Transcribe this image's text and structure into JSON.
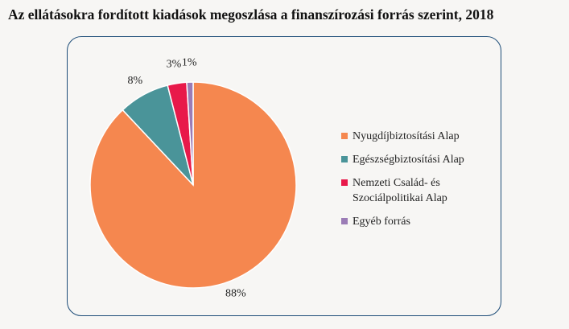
{
  "title": "Az ellátásokra fordított kiadások megoszlása a finanszírozási forrás szerint, 2018",
  "chart_data": {
    "type": "pie",
    "title": "Az ellátásokra fordított kiadások megoszlása a finanszírozási forrás szerint, 2018",
    "categories": [
      "Nyugdíjbiztosítási Alap",
      "Egészségbiztosítási Alap",
      "Nemzeti Család- és Szociálpolitikai Alap",
      "Egyéb forrás"
    ],
    "values": [
      88,
      8,
      3,
      1
    ],
    "data_labels": [
      "88%",
      "8%",
      "3%",
      "1%"
    ],
    "colors": [
      "#f5874f",
      "#4a9499",
      "#e8194a",
      "#9b7cb6"
    ],
    "legend_position": "right"
  },
  "legend": {
    "items": [
      {
        "label": "Nyugdíjbiztosítási Alap",
        "color": "#f5874f"
      },
      {
        "label": "Egészségbiztosítási Alap",
        "color": "#4a9499"
      },
      {
        "label": "Nemzeti Család- és Szociálpolitikai Alap",
        "color": "#e8194a"
      },
      {
        "label": "Egyéb forrás",
        "color": "#9b7cb6"
      }
    ]
  }
}
